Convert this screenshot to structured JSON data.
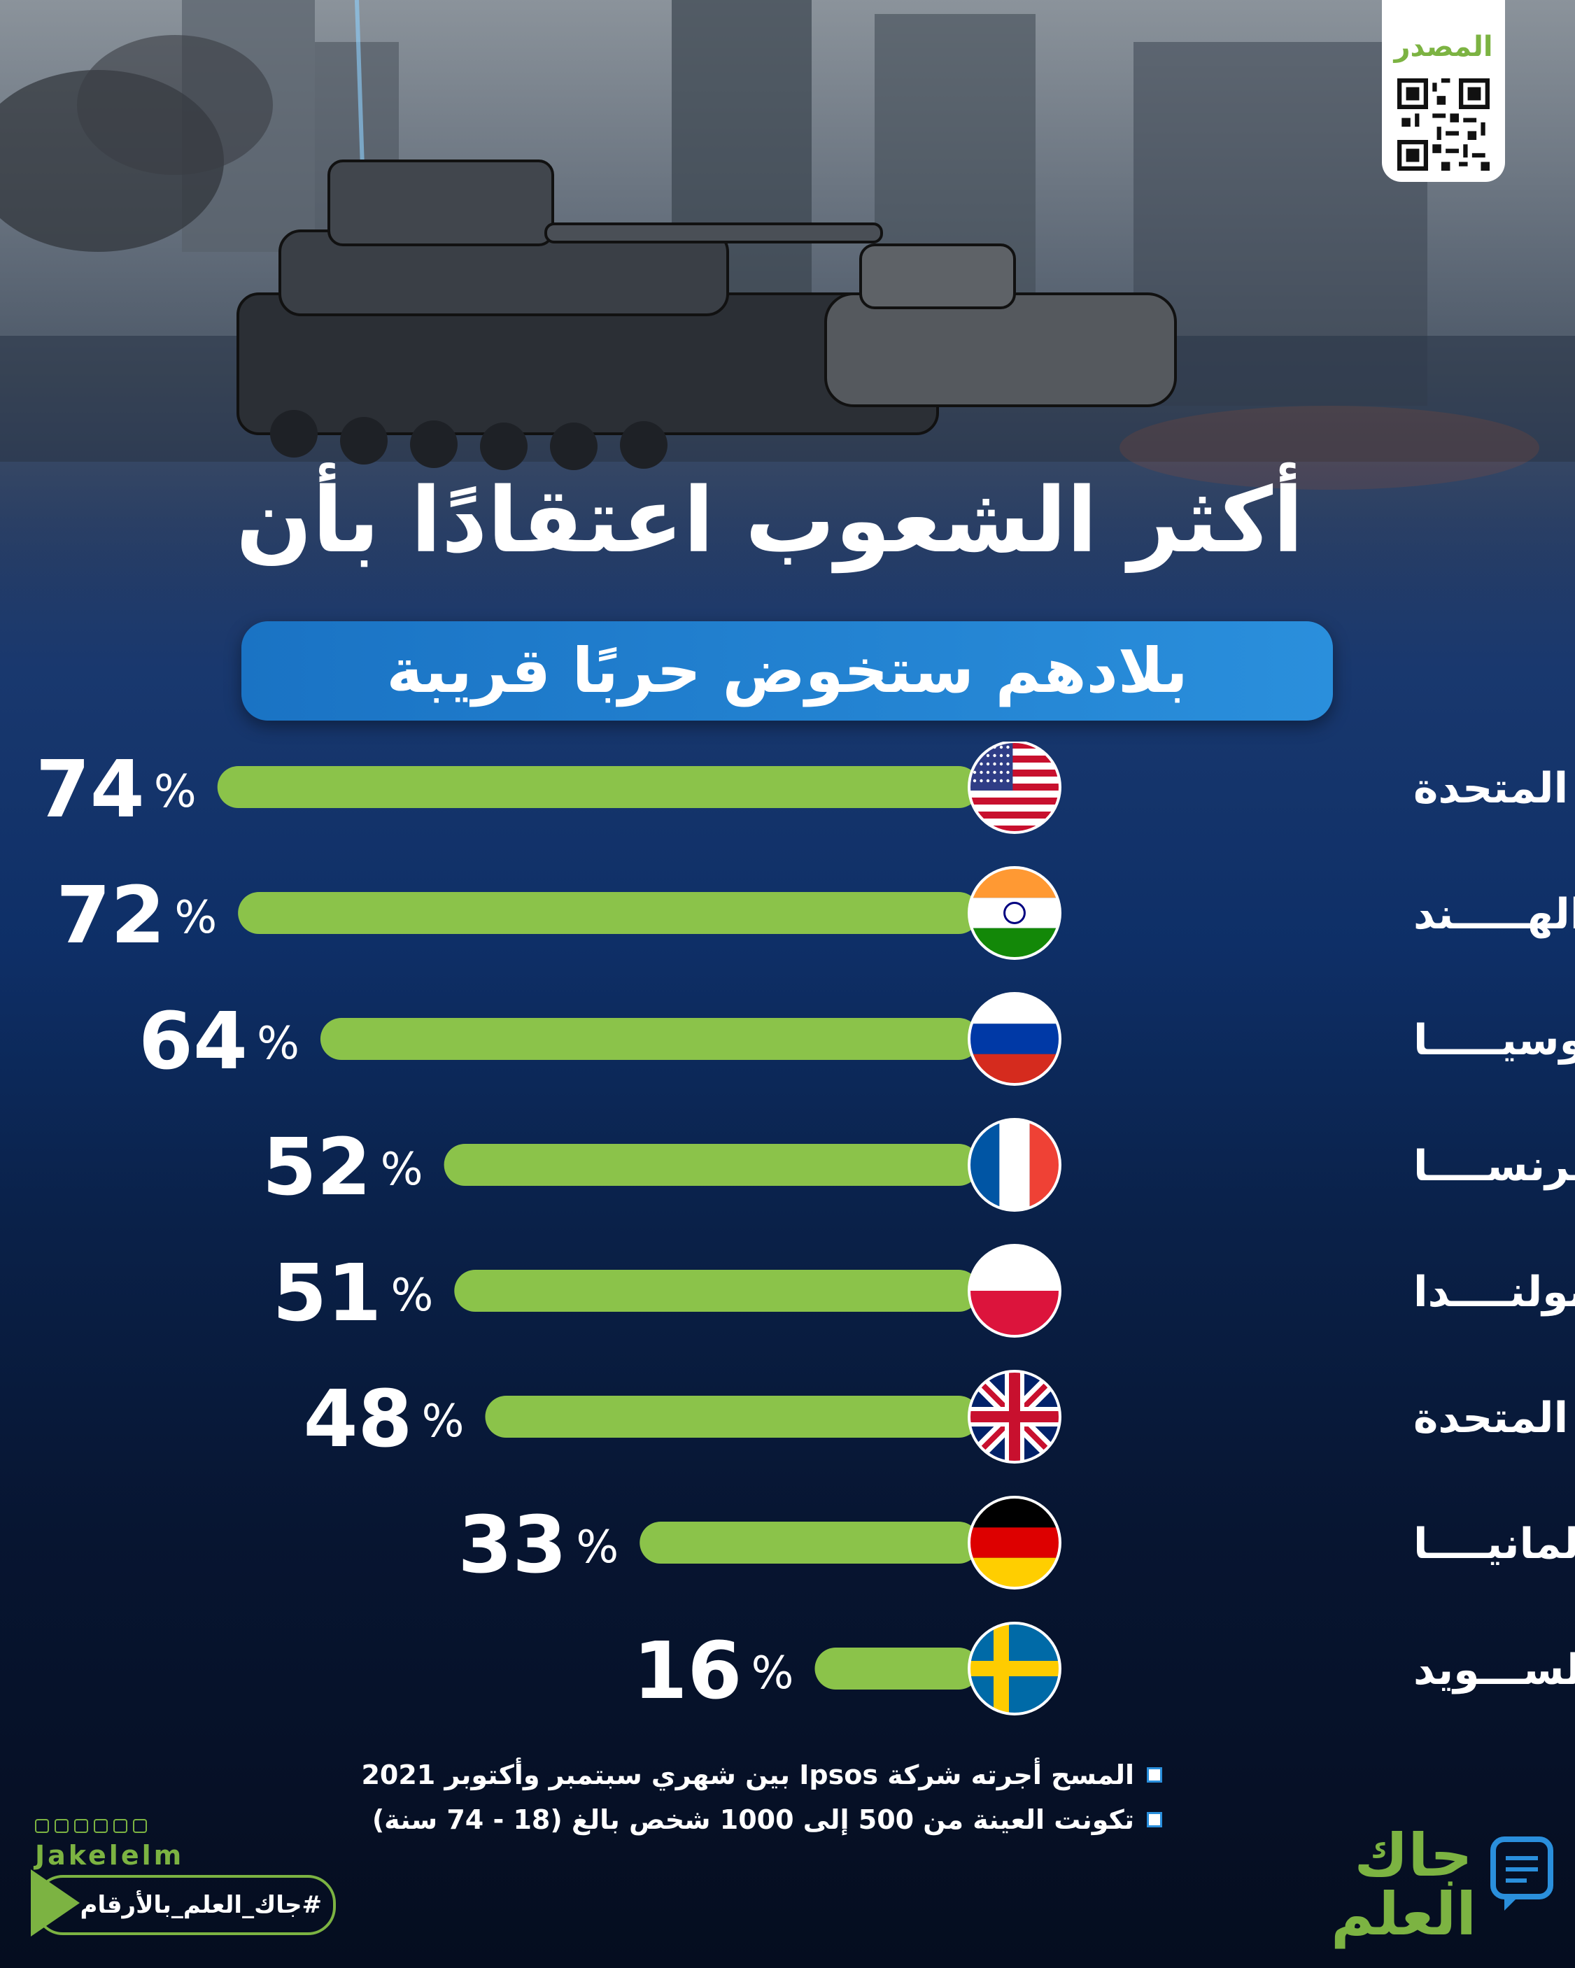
{
  "header": {
    "title": "أكثر الشعوب اعتقادًا بأن",
    "subtitle": "بلادهم ستخوض حربًا قريبة",
    "source_label": "المصدر"
  },
  "chart_data": {
    "type": "bar",
    "orientation": "horizontal",
    "title": "أكثر الشعوب اعتقادًا بأن بلادهم ستخوض حربًا قريبة",
    "categories": [
      "الولايات المتحدة",
      "الهـــــند",
      "روسيـــــا",
      "فرنســــا",
      "بولنــــدا",
      "المملكة المتحدة",
      "ألمانيــــا",
      "الســـويد"
    ],
    "values": [
      74,
      72,
      64,
      52,
      51,
      48,
      33,
      16
    ],
    "value_suffix": "%",
    "flags": [
      "us",
      "india",
      "russia",
      "france",
      "poland",
      "uk",
      "germany",
      "sweden"
    ],
    "xlim": [
      0,
      100
    ],
    "bar_color": "#8bc34a",
    "grid": false,
    "legend": "none"
  },
  "notes": [
    "المسح أجرته شركة Ipsos بين شهري سبتمبر وأكتوبر 2021",
    "تكونت العينة من 500 إلى 1000 شخص بالغ (18 - 74 سنة)"
  ],
  "footer": {
    "handle": "Jakelelm",
    "hashtag": "#جاك_العلم_بالأرقام",
    "brand": "جاك العلم",
    "brand_color": "#7cb342"
  }
}
